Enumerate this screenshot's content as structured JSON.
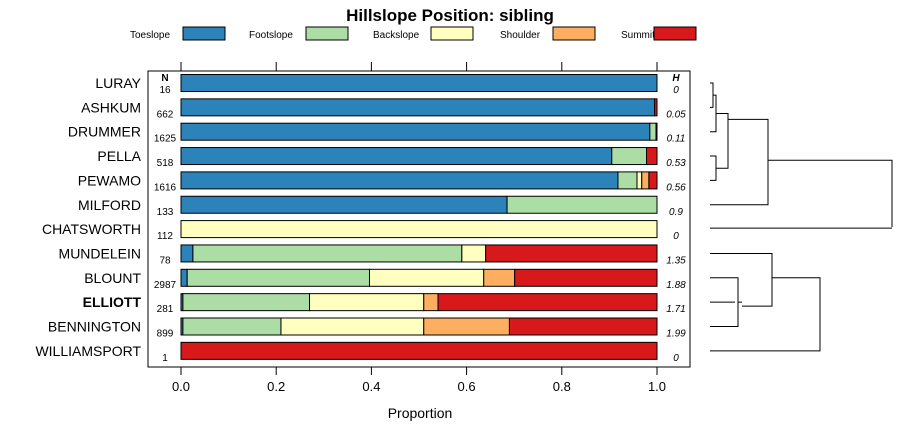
{
  "chart_data": {
    "type": "bar",
    "title": "Hillslope Position: sibling",
    "xlabel": "Proportion",
    "ylabel": "",
    "xlim": [
      0,
      1
    ],
    "x_ticks": [
      "0.0",
      "0.2",
      "0.4",
      "0.6",
      "0.8",
      "1.0"
    ],
    "n_header": "N",
    "h_header": "H",
    "legend_position": "top",
    "stacked": true,
    "categories": [
      "LURAY",
      "ASHKUM",
      "DRUMMER",
      "PELLA",
      "PEWAMO",
      "MILFORD",
      "CHATSWORTH",
      "MUNDELEIN",
      "BLOUNT",
      "ELLIOTT",
      "BENNINGTON",
      "WILLIAMSPORT"
    ],
    "highlighted_category": "ELLIOTT",
    "n": [
      "16",
      "662",
      "1625",
      "518",
      "1616",
      "133",
      "112",
      "78",
      "2987",
      "281",
      "899",
      "1"
    ],
    "h": [
      "0",
      "0.05",
      "0.11",
      "0.53",
      "0.56",
      "0.9",
      "0",
      "1.35",
      "1.88",
      "1.71",
      "1.99",
      "0"
    ],
    "series": [
      {
        "name": "Toeslope",
        "color": "#2B83BA",
        "values": [
          1.0,
          0.995,
          0.985,
          0.905,
          0.918,
          0.685,
          0.0,
          0.025,
          0.013,
          0.004,
          0.004,
          0.0
        ]
      },
      {
        "name": "Footslope",
        "color": "#ABDDA4",
        "values": [
          0.0,
          0.0,
          0.013,
          0.073,
          0.04,
          0.315,
          0.0,
          0.565,
          0.383,
          0.266,
          0.206,
          0.0
        ]
      },
      {
        "name": "Backslope",
        "color": "#FFFFBF",
        "values": [
          0.0,
          0.0,
          0.0,
          0.0,
          0.01,
          0.0,
          1.0,
          0.05,
          0.24,
          0.24,
          0.3,
          0.0
        ]
      },
      {
        "name": "Shoulder",
        "color": "#FDAE61",
        "values": [
          0.0,
          0.0,
          0.0,
          0.0,
          0.015,
          0.0,
          0.0,
          0.0,
          0.065,
          0.03,
          0.18,
          0.0
        ]
      },
      {
        "name": "Summit",
        "color": "#D7191C",
        "values": [
          0.0,
          0.005,
          0.002,
          0.022,
          0.017,
          0.0,
          0.0,
          0.36,
          0.299,
          0.46,
          0.31,
          1.0
        ]
      }
    ]
  }
}
